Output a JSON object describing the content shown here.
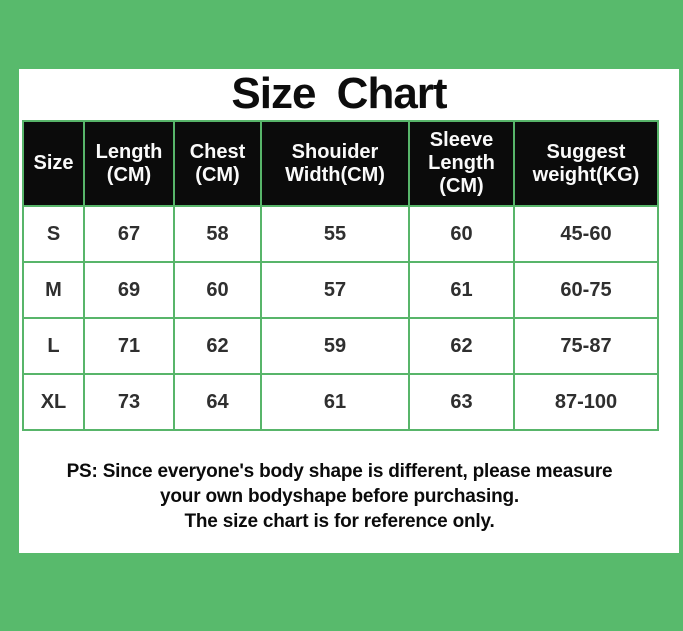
{
  "title": "Size Chart",
  "colors": {
    "background_green": "#58ba6c",
    "panel_white": "#ffffff",
    "grid_green": "#58b56a",
    "header_black": "#0b0b0b",
    "header_text": "#fafafa",
    "cell_text": "#2f2f2f"
  },
  "chart_data": {
    "type": "table",
    "title": "Size Chart",
    "columns": [
      "Size",
      "Length (CM)",
      "Chest (CM)",
      "Shouider Width(CM)",
      "Sleeve Length (CM)",
      "Suggest weight(KG)"
    ],
    "rows": [
      [
        "S",
        "67",
        "58",
        "55",
        "60",
        "45-60"
      ],
      [
        "M",
        "69",
        "60",
        "57",
        "61",
        "60-75"
      ],
      [
        "L",
        "71",
        "62",
        "59",
        "62",
        "75-87"
      ],
      [
        "XL",
        "73",
        "64",
        "61",
        "63",
        "87-100"
      ]
    ]
  },
  "note": {
    "line1": "PS: Since everyone's body shape is different, please measure",
    "line2": "your own bodyshape before purchasing.",
    "line3": "The size chart is for reference only."
  }
}
